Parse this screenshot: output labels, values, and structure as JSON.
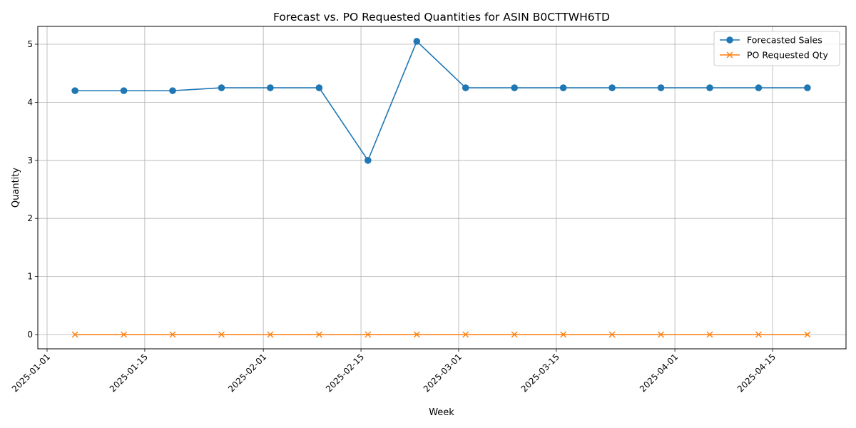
{
  "chart_data": {
    "type": "line",
    "title": "Forecast vs. PO Requested Quantities for ASIN B0CTTWH6TD",
    "xlabel": "Week",
    "ylabel": "Quantity",
    "x": [
      "2025-01-05",
      "2025-01-12",
      "2025-01-19",
      "2025-01-26",
      "2025-02-02",
      "2025-02-09",
      "2025-02-16",
      "2025-02-23",
      "2025-03-02",
      "2025-03-09",
      "2025-03-16",
      "2025-03-23",
      "2025-03-30",
      "2025-04-06",
      "2025-04-13",
      "2025-04-20"
    ],
    "x_ticks": [
      "2025-01-01",
      "2025-01-15",
      "2025-02-01",
      "2025-02-15",
      "2025-03-01",
      "2025-03-15",
      "2025-04-01",
      "2025-04-15"
    ],
    "xlim": [
      "2025-01-01",
      "2025-04-20"
    ],
    "y_ticks": [
      0,
      1,
      2,
      3,
      4,
      5
    ],
    "ylim": [
      -0.25,
      5.3
    ],
    "grid": true,
    "legend_position": "top-right",
    "series": [
      {
        "name": "Forecasted Sales",
        "color": "#1f77b4",
        "marker": "circle",
        "values": [
          4.2,
          4.2,
          4.2,
          4.25,
          4.25,
          4.25,
          3.0,
          5.05,
          4.25,
          4.25,
          4.25,
          4.25,
          4.25,
          4.25,
          4.25,
          4.25
        ]
      },
      {
        "name": "PO Requested Qty",
        "color": "#ff7f0e",
        "marker": "x",
        "values": [
          0,
          0,
          0,
          0,
          0,
          0,
          0,
          0,
          0,
          0,
          0,
          0,
          0,
          0,
          0,
          0
        ]
      }
    ]
  }
}
